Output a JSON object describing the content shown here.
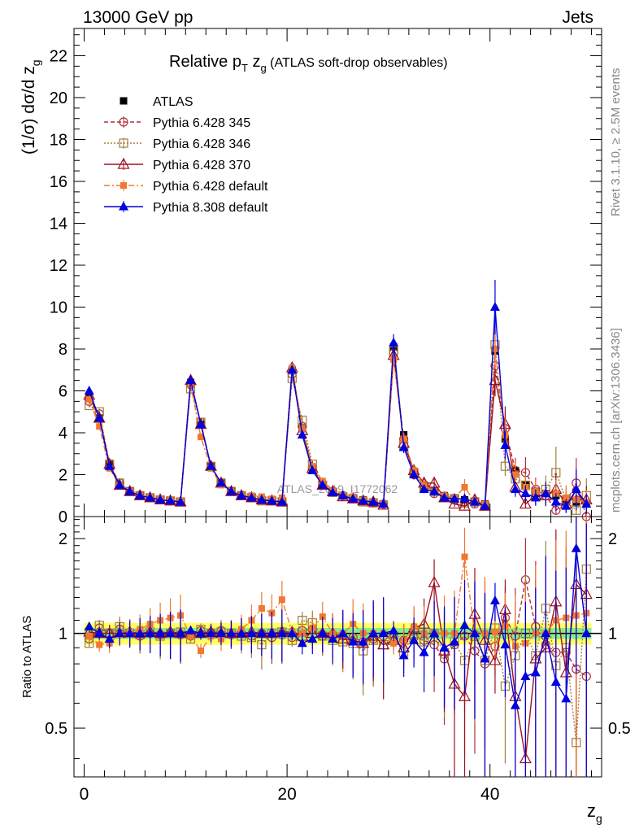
{
  "header": {
    "left": "13000 GeV pp",
    "right": "Jets"
  },
  "side": {
    "rivet": "Rivet 3.1.10, ≥ 2.5M events",
    "mcplots": "mcplots.cern.ch [arXiv:1306.3436]"
  },
  "watermark": "ATLAS_2019_I1772062",
  "title": {
    "main": "Relative p",
    "sub1": "T",
    "mid": " z",
    "sub2": "g",
    "tail": " (ATLAS soft-drop observables)"
  },
  "ylabel": {
    "main": "(1/σ) dσ/d z",
    "sub": "g"
  },
  "xlabel": {
    "main": "z",
    "sub": "g"
  },
  "ratio_label": "Ratio to ATLAS",
  "legend": [
    {
      "key": "atlas",
      "label": "ATLAS",
      "color": "#000000"
    },
    {
      "key": "py345",
      "label": "Pythia 6.428 345",
      "color": "#b03040"
    },
    {
      "key": "py346",
      "label": "Pythia 6.428 346",
      "color": "#a08040"
    },
    {
      "key": "py370",
      "label": "Pythia 6.428 370",
      "color": "#a01020"
    },
    {
      "key": "pydef",
      "label": "Pythia 6.428 default",
      "color": "#f07830"
    },
    {
      "key": "py8",
      "label": "Pythia 8.308 default",
      "color": "#0000e0"
    }
  ],
  "chart_data": {
    "type": "line",
    "x": [
      0.5,
      1.5,
      2.5,
      3.5,
      4.5,
      5.5,
      6.5,
      7.5,
      8.5,
      9.5,
      10.5,
      11.5,
      12.5,
      13.5,
      14.5,
      15.5,
      16.5,
      17.5,
      18.5,
      19.5,
      20.5,
      21.5,
      22.5,
      23.5,
      24.5,
      25.5,
      26.5,
      27.5,
      28.5,
      29.5,
      30.5,
      31.5,
      32.5,
      33.5,
      34.5,
      35.5,
      36.5,
      37.5,
      38.5,
      39.5,
      40.5,
      41.5,
      42.5,
      43.5,
      44.5,
      45.5,
      46.5,
      47.5,
      48.5,
      49.5
    ],
    "xlim": [
      -1,
      51
    ],
    "xticks": [
      0,
      20,
      40
    ],
    "main": {
      "ylim": [
        0,
        23.3
      ],
      "yticks": [
        0,
        2,
        4,
        6,
        8,
        10,
        12,
        14,
        16,
        18,
        20,
        22
      ],
      "series": [
        {
          "name": "ATLAS",
          "values": [
            5.7,
            4.7,
            2.5,
            1.5,
            1.2,
            1.0,
            0.9,
            0.8,
            0.75,
            0.7,
            6.4,
            4.4,
            2.4,
            1.6,
            1.2,
            1.0,
            0.9,
            0.8,
            0.75,
            0.7,
            7.0,
            4.2,
            2.3,
            1.5,
            1.2,
            1.0,
            0.9,
            0.8,
            0.7,
            0.6,
            8.1,
            3.9,
            2.1,
            1.5,
            1.2,
            1.0,
            0.9,
            0.8,
            0.7,
            0.6,
            7.9,
            3.7,
            2.2,
            1.5,
            1.2,
            1.1,
            1.0,
            0.8,
            0.7,
            0.6
          ]
        },
        {
          "name": "Pythia 6.428 345",
          "values": [
            5.5,
            4.9,
            2.5,
            1.6,
            1.2,
            1.0,
            0.9,
            0.8,
            0.75,
            0.7,
            6.3,
            4.5,
            2.4,
            1.6,
            1.2,
            1.0,
            0.9,
            0.8,
            0.75,
            0.7,
            6.8,
            4.3,
            2.3,
            1.5,
            1.15,
            1.0,
            0.85,
            0.75,
            0.65,
            0.6,
            7.8,
            3.7,
            2.0,
            1.4,
            1.1,
            0.9,
            0.8,
            0.7,
            0.6,
            0.5,
            7.2,
            4.2,
            2.2,
            2.1,
            1.3,
            1.0,
            0.3,
            0.7,
            1.6,
            0.0
          ]
        },
        {
          "name": "Pythia 6.428 346",
          "values": [
            5.3,
            5.0,
            2.5,
            1.6,
            1.2,
            1.0,
            0.9,
            0.8,
            0.75,
            0.7,
            6.1,
            4.5,
            2.4,
            1.6,
            1.2,
            1.0,
            0.9,
            0.75,
            0.75,
            0.7,
            6.6,
            4.6,
            2.5,
            1.5,
            1.15,
            0.95,
            0.85,
            0.7,
            0.65,
            0.55,
            7.9,
            3.4,
            2.1,
            1.4,
            1.2,
            0.9,
            0.85,
            0.65,
            0.7,
            0.5,
            8.2,
            2.4,
            1.8,
            1.5,
            1.0,
            1.3,
            2.1,
            0.8,
            0.3,
            1.0
          ]
        },
        {
          "name": "Pythia 6.428 370",
          "values": [
            5.8,
            4.7,
            2.5,
            1.5,
            1.2,
            1.0,
            0.9,
            0.8,
            0.75,
            0.7,
            6.5,
            4.4,
            2.4,
            1.6,
            1.2,
            1.0,
            0.9,
            0.8,
            0.75,
            0.7,
            7.1,
            4.1,
            2.3,
            1.5,
            1.2,
            0.95,
            0.85,
            0.75,
            0.7,
            0.55,
            7.7,
            3.5,
            2.2,
            1.6,
            1.6,
            0.9,
            0.6,
            0.5,
            0.8,
            0.5,
            6.5,
            4.4,
            1.4,
            0.6,
            1.0,
            1.0,
            1.3,
            0.6,
            1.0,
            0.8
          ]
        },
        {
          "name": "Pythia 6.428 default",
          "values": [
            5.6,
            4.3,
            2.3,
            1.5,
            1.2,
            1.0,
            0.95,
            0.85,
            0.8,
            0.75,
            6.3,
            3.8,
            2.3,
            1.5,
            1.2,
            1.0,
            1.0,
            0.95,
            0.85,
            0.9,
            7.1,
            4.2,
            2.4,
            1.7,
            1.2,
            1.0,
            0.95,
            0.8,
            0.7,
            0.6,
            7.5,
            3.7,
            2.2,
            1.5,
            1.2,
            1.0,
            0.9,
            1.4,
            0.7,
            0.6,
            8.0,
            3.9,
            2.0,
            1.4,
            1.2,
            1.1,
            1.1,
            0.9,
            0.8,
            0.7
          ]
        },
        {
          "name": "Pythia 8.308 default",
          "values": [
            6.0,
            4.7,
            2.4,
            1.5,
            1.2,
            1.0,
            0.9,
            0.8,
            0.75,
            0.7,
            6.5,
            4.4,
            2.4,
            1.6,
            1.2,
            1.0,
            0.9,
            0.8,
            0.75,
            0.7,
            7.0,
            3.9,
            2.2,
            1.5,
            1.15,
            1.0,
            0.85,
            0.75,
            0.7,
            0.6,
            8.3,
            3.3,
            2.0,
            1.3,
            1.2,
            0.9,
            0.85,
            0.85,
            0.7,
            0.5,
            10.0,
            3.4,
            1.3,
            1.1,
            0.9,
            1.1,
            0.7,
            0.5,
            1.3,
            0.6
          ]
        }
      ]
    },
    "ratio": {
      "ylim": [
        0.35,
        2.35
      ],
      "yticks": [
        0.5,
        1,
        2
      ],
      "series": [
        {
          "name": "Pythia 6.428 345",
          "values": [
            0.96,
            1.04,
            1.0,
            1.03,
            1.0,
            0.98,
            1.0,
            0.99,
            1.0,
            0.99,
            0.98,
            1.02,
            1.0,
            1.02,
            0.99,
            1.0,
            0.98,
            1.0,
            0.97,
            0.99,
            0.97,
            1.02,
            1.03,
            0.98,
            0.99,
            0.98,
            0.97,
            0.94,
            0.96,
            0.98,
            0.97,
            0.95,
            0.97,
            0.95,
            0.92,
            0.83,
            0.92,
            0.98,
            0.88,
            0.8,
            0.91,
            1.12,
            0.98,
            1.48,
            1.05,
            0.92,
            0.87,
            0.87,
            0.77,
            0.73
          ]
        },
        {
          "name": "Pythia 6.428 346",
          "values": [
            0.93,
            1.06,
            1.0,
            1.05,
            1.0,
            0.99,
            1.01,
            0.98,
            1.0,
            1.01,
            0.96,
            1.03,
            1.0,
            1.01,
            1.0,
            0.98,
            0.97,
            0.92,
            1.0,
            1.01,
            0.95,
            1.1,
            1.08,
            0.98,
            0.95,
            0.94,
            0.93,
            0.88,
            0.95,
            0.92,
            0.98,
            0.87,
            1.0,
            0.94,
            1.0,
            0.86,
            0.94,
            0.82,
            0.98,
            0.82,
            1.04,
            0.68,
            0.85,
            1.0,
            0.85,
            1.2,
            0.79,
            0.9,
            0.45,
            1.6
          ]
        },
        {
          "name": "Pythia 6.428 370",
          "values": [
            1.01,
            1.0,
            1.0,
            1.0,
            1.01,
            1.0,
            1.01,
            1.0,
            1.01,
            1.0,
            1.01,
            1.0,
            1.01,
            1.0,
            1.0,
            1.0,
            1.01,
            1.0,
            1.0,
            1.01,
            1.01,
            0.98,
            1.0,
            1.0,
            1.0,
            0.96,
            0.95,
            0.93,
            0.98,
            0.92,
            0.95,
            0.9,
            1.04,
            1.07,
            1.45,
            0.88,
            0.69,
            0.63,
            1.15,
            0.95,
            0.82,
            1.19,
            0.63,
            0.4,
            0.83,
            0.9,
            1.26,
            0.75,
            1.43,
            1.33
          ]
        },
        {
          "name": "Pythia 6.428 default",
          "values": [
            0.98,
            0.92,
            0.93,
            0.99,
            1.01,
            1.03,
            1.07,
            1.1,
            1.12,
            1.14,
            0.98,
            0.88,
            0.98,
            0.96,
            1.0,
            1.03,
            1.1,
            1.2,
            1.16,
            1.28,
            1.01,
            1.0,
            1.04,
            1.13,
            1.0,
            1.0,
            1.07,
            1.0,
            1.0,
            1.0,
            0.93,
            0.95,
            1.05,
            1.0,
            1.0,
            1.0,
            1.0,
            1.75,
            1.0,
            1.0,
            1.01,
            1.05,
            0.91,
            0.93,
            1.0,
            1.0,
            1.1,
            1.12,
            1.14,
            1.16
          ]
        },
        {
          "name": "Pythia 8.308 default",
          "values": [
            1.05,
            1.0,
            0.96,
            1.0,
            1.0,
            1.0,
            1.0,
            1.0,
            1.0,
            1.0,
            1.02,
            1.0,
            1.0,
            1.0,
            1.0,
            1.0,
            1.0,
            1.0,
            1.0,
            1.0,
            1.0,
            0.93,
            0.96,
            1.0,
            0.96,
            1.0,
            0.94,
            0.94,
            1.0,
            1.0,
            1.02,
            0.85,
            0.95,
            0.87,
            1.0,
            0.9,
            0.94,
            1.06,
            1.0,
            0.83,
            1.27,
            0.92,
            0.59,
            0.73,
            0.75,
            1.0,
            0.7,
            0.62,
            1.86,
            1.0
          ]
        }
      ]
    },
    "atlas_band": {
      "inner": [
        0.96,
        1.04
      ],
      "outer": [
        0.92,
        1.08
      ]
    }
  }
}
